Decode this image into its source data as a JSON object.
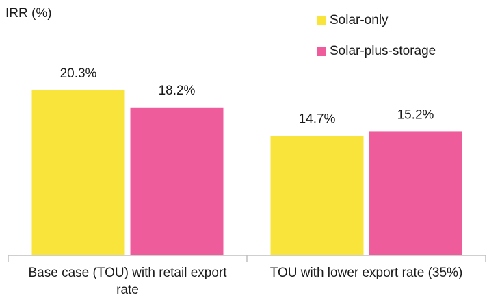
{
  "chart_data": {
    "type": "bar",
    "y_label": "IRR (%)",
    "categories": [
      "Base case (TOU) with retail export rate",
      "TOU with lower export rate (35%)"
    ],
    "series": [
      {
        "name": "Solar-only",
        "color": "#f9e43b",
        "values": [
          20.3,
          14.7
        ],
        "value_labels": [
          "20.3%",
          "14.7%"
        ]
      },
      {
        "name": "Solar-plus-storage",
        "color": "#ee5c9c",
        "values": [
          18.2,
          15.2
        ],
        "value_labels": [
          "18.2%",
          "15.2%"
        ]
      }
    ],
    "ylim": [
      0,
      25
    ],
    "legend": "upper right"
  }
}
